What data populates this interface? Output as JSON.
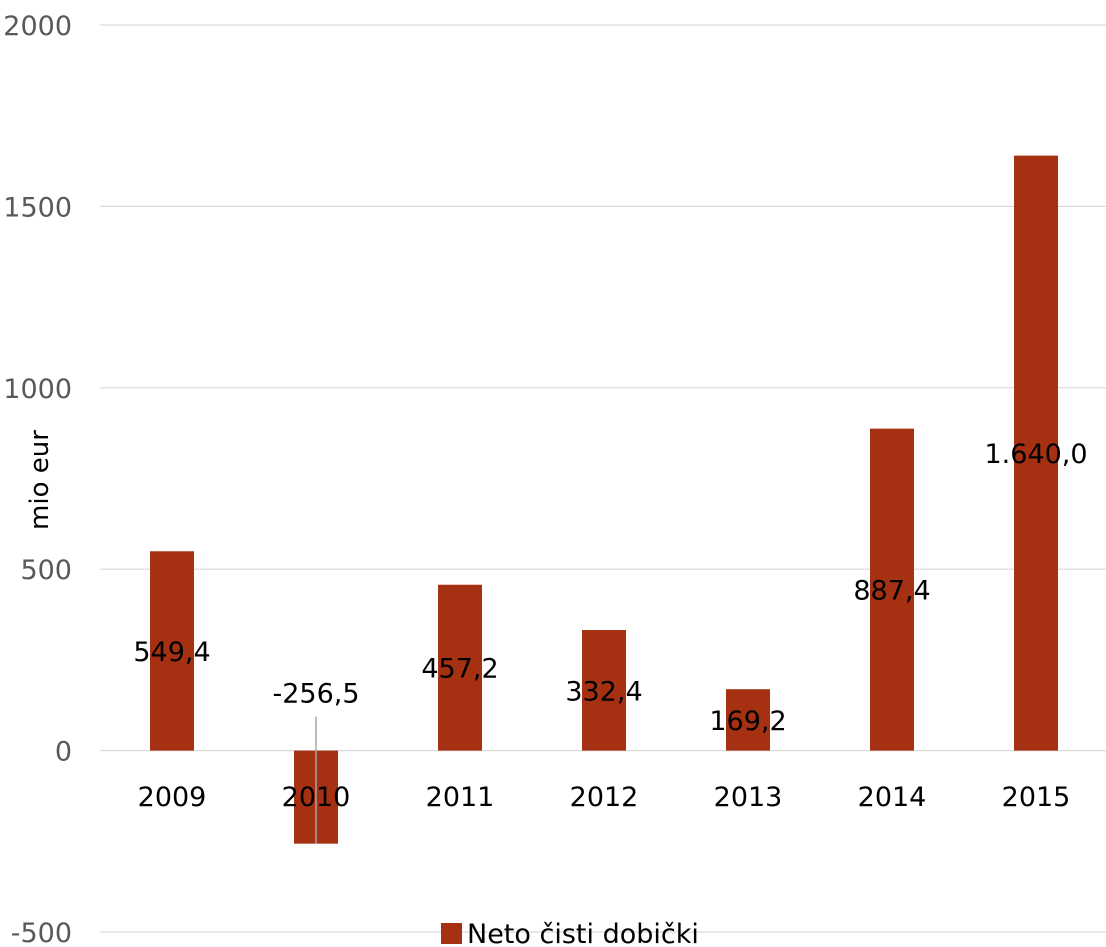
{
  "chart_data": {
    "type": "bar",
    "title": "",
    "xlabel": "",
    "ylabel": "mio eur",
    "ylim": [
      -500,
      2000
    ],
    "yticks": [
      -500,
      0,
      500,
      1000,
      1500,
      2000
    ],
    "grid": true,
    "legend_position": "bottom",
    "categories": [
      "2009",
      "2010",
      "2011",
      "2012",
      "2013",
      "2014",
      "2015"
    ],
    "series": [
      {
        "name": "Neto čisti dobički",
        "color": "#A53012",
        "values": [
          549.4,
          -256.5,
          457.2,
          332.4,
          169.2,
          887.4,
          1640.0
        ],
        "data_labels": [
          "549,4",
          "-256,5",
          "457,2",
          "332,4",
          "169,2",
          "887,4",
          "1.640,0"
        ]
      }
    ]
  }
}
